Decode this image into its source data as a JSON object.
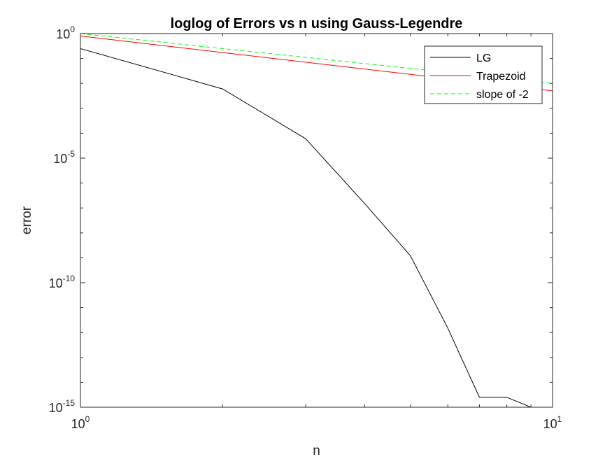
{
  "chart_data": {
    "type": "line",
    "title": "loglog of Errors vs n using Gauss-Legendre",
    "xlabel": "n",
    "ylabel": "error",
    "xscale": "log",
    "yscale": "log",
    "xlim": [
      1,
      10
    ],
    "ylim": [
      1e-15,
      1
    ],
    "xticks": [
      {
        "value": 1,
        "base": "10",
        "exp": "0"
      },
      {
        "value": 10,
        "base": "10",
        "exp": "1"
      }
    ],
    "yticks": [
      {
        "value": 1e-15,
        "base": "10",
        "exp": "-15"
      },
      {
        "value": 1e-10,
        "base": "10",
        "exp": "-10"
      },
      {
        "value": 1e-05,
        "base": "10",
        "exp": "-5"
      },
      {
        "value": 1,
        "base": "10",
        "exp": "0"
      }
    ],
    "grid": false,
    "legend_position": "top-right",
    "series": [
      {
        "name": "LG",
        "color": "#000000",
        "dash": "solid",
        "x": [
          1,
          2,
          3,
          4,
          5,
          6,
          7,
          8,
          9
        ],
        "y": [
          0.25,
          0.006,
          6e-05,
          1.5e-07,
          1.2e-09,
          1.5e-12,
          2.5e-15,
          2.5e-15,
          1e-15
        ]
      },
      {
        "name": "Trapezoid",
        "color": "#ff0000",
        "dash": "solid",
        "x": [
          1,
          10
        ],
        "y": [
          0.8,
          0.005
        ]
      },
      {
        "name": "slope of -2",
        "color": "#00ff00",
        "dash": "dashed",
        "x": [
          1,
          10
        ],
        "y": [
          1,
          0.01
        ]
      }
    ]
  }
}
